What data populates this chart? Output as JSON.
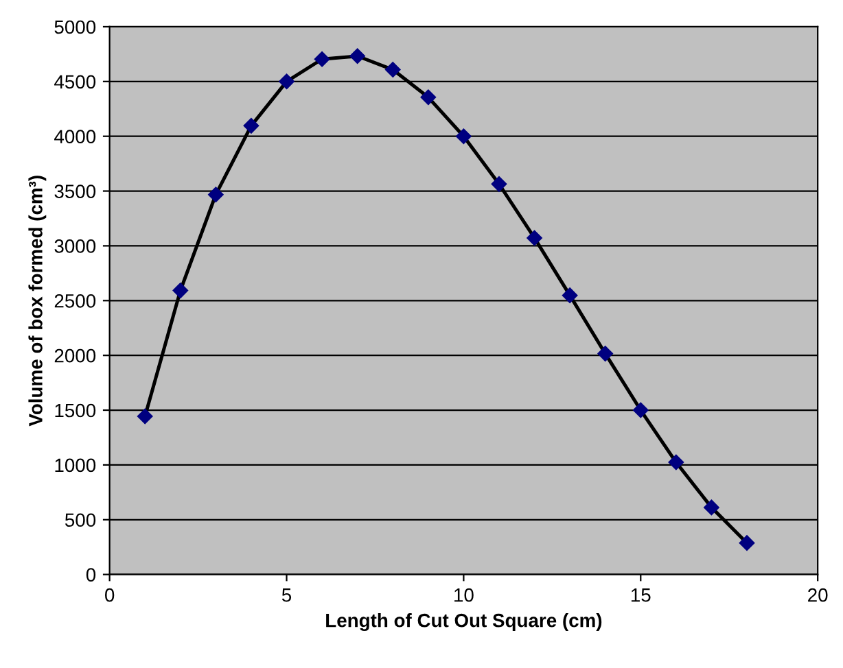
{
  "chart_data": {
    "type": "line",
    "xlabel": "Length of Cut Out Square (cm)",
    "ylabel": "Volume of box formed (cm³)",
    "x": [
      1,
      2,
      3,
      4,
      5,
      6,
      7,
      8,
      9,
      10,
      11,
      12,
      13,
      14,
      15,
      16,
      17,
      18
    ],
    "series": [
      {
        "color": "#000000",
        "values": [
          1444,
          2592,
          3468,
          4096,
          4500,
          4704,
          4732,
          4608,
          4356,
          4000,
          3564,
          3072,
          2548,
          2016,
          1500,
          1024,
          612,
          288
        ]
      }
    ],
    "xlim": [
      0,
      20
    ],
    "xticks": [
      0,
      5,
      10,
      15,
      20
    ],
    "ylim": [
      0,
      5000
    ],
    "yticks": [
      0,
      500,
      1000,
      1500,
      2000,
      2500,
      3000,
      3500,
      4000,
      4500,
      5000
    ],
    "grid": "y",
    "marker": "diamond",
    "line_style": "solid"
  }
}
